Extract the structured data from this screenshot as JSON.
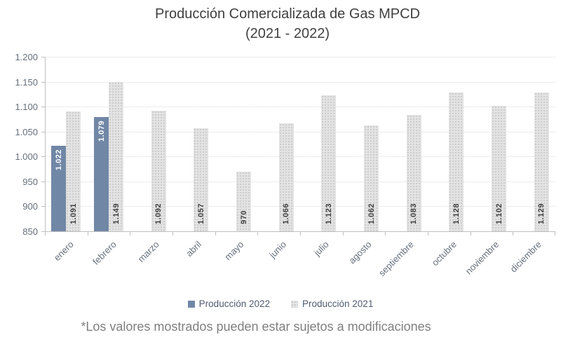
{
  "title": {
    "line1": "Producción Comercializada de Gas MPCD",
    "line2": "(2021 - 2022)"
  },
  "footnote": "*Los valores mostrados pueden estar sujetos a modificaciones",
  "colors": {
    "bar_2022": "#7187a6",
    "bar_2021": "#e3e3e3",
    "bar_2021_dots": "#c6c6c6",
    "gridline": "#d9d9d9",
    "axis": "#bfbfbf",
    "title_text": "#404040",
    "axis_text": "#66707c",
    "legend_text": "#4f5d70",
    "label_on_blue": "#ffffff",
    "label_on_gray": "#3f3f3f",
    "footnote_text": "#7f7f7f"
  },
  "chart_data": {
    "type": "bar",
    "title": "Producción Comercializada de Gas MPCD (2021 - 2022)",
    "categories": [
      "enero",
      "febrero",
      "marzo",
      "abril",
      "mayo",
      "junio",
      "julio",
      "agosto",
      "septiembre",
      "octubre",
      "noviembre",
      "diciembre"
    ],
    "series": [
      {
        "name": "Producción 2022",
        "color": "#7187a6",
        "values": [
          1022,
          1079,
          null,
          null,
          null,
          null,
          null,
          null,
          null,
          null,
          null,
          null
        ],
        "labels": [
          "1.022",
          "1.079",
          null,
          null,
          null,
          null,
          null,
          null,
          null,
          null,
          null,
          null
        ]
      },
      {
        "name": "Producción 2021",
        "color": "#e3e3e3",
        "values": [
          1091,
          1149,
          1092,
          1057,
          970,
          1066,
          1123,
          1062,
          1083,
          1128,
          1102,
          1129
        ],
        "labels": [
          "1.091",
          "1.149",
          "1.092",
          "1.057",
          "970",
          "1.066",
          "1.123",
          "1.062",
          "1.083",
          "1.128",
          "1.102",
          "1.129"
        ]
      }
    ],
    "ylim": [
      850,
      1200
    ],
    "yticks": [
      {
        "value": 850,
        "label": "850"
      },
      {
        "value": 900,
        "label": "900"
      },
      {
        "value": 950,
        "label": "950"
      },
      {
        "value": 1000,
        "label": "1.000"
      },
      {
        "value": 1050,
        "label": "1.050"
      },
      {
        "value": 1100,
        "label": "1.100"
      },
      {
        "value": 1150,
        "label": "1.150"
      },
      {
        "value": 1200,
        "label": "1.200"
      }
    ],
    "grid": true,
    "legend_position": "bottom",
    "xlabel": "",
    "ylabel": ""
  }
}
